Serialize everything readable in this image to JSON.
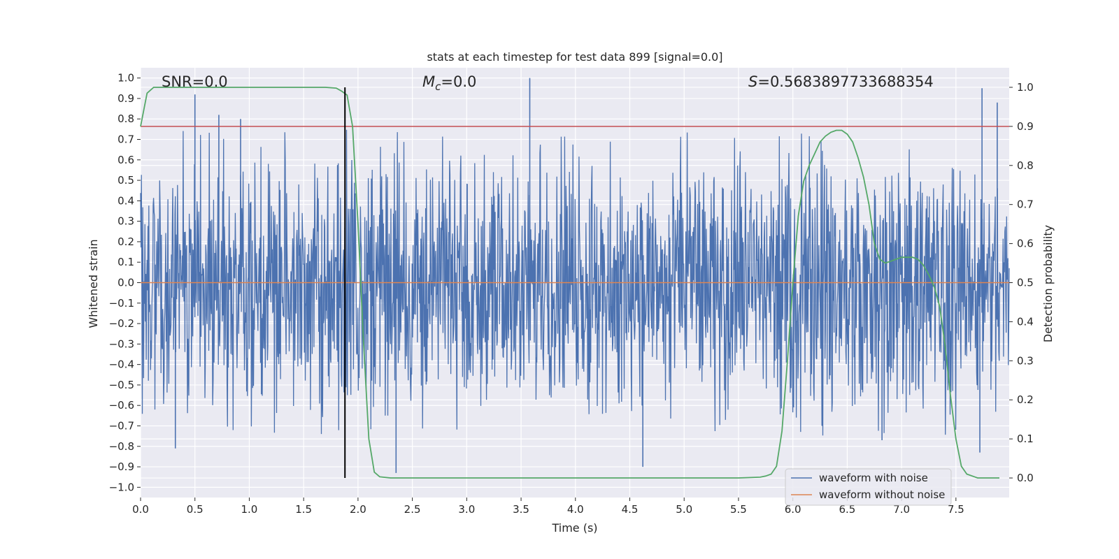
{
  "chart_data": {
    "type": "line",
    "title": "stats at each timestep for test data 899 [signal=0.0]",
    "xlabel": "Time (s)",
    "ylabel": "Whitened strain",
    "ylabel_right": "Detection probability",
    "xlim": [
      0.0,
      7.99
    ],
    "ylim": [
      -1.05,
      1.05
    ],
    "ylim_right": [
      -0.05,
      1.05
    ],
    "xticks": [
      0.0,
      0.5,
      1.0,
      1.5,
      2.0,
      2.5,
      3.0,
      3.5,
      4.0,
      4.5,
      5.0,
      5.5,
      6.0,
      6.5,
      7.0,
      7.5
    ],
    "xtick_labels": [
      "0.0",
      "0.5",
      "1.0",
      "1.5",
      "2.0",
      "2.5",
      "3.0",
      "3.5",
      "4.0",
      "4.5",
      "5.0",
      "5.5",
      "6.0",
      "6.5",
      "7.0",
      "7.5"
    ],
    "yticks": [
      1.0,
      0.9,
      0.8,
      0.7,
      0.6,
      0.5,
      0.4,
      0.3,
      0.2,
      0.1,
      0.0,
      -0.1,
      -0.2,
      -0.3,
      -0.4,
      -0.5,
      -0.6,
      -0.7,
      -0.8,
      -0.9,
      -1.0
    ],
    "ytick_labels": [
      "1.0",
      "0.9",
      "0.8",
      "0.7",
      "0.6",
      "0.5",
      "0.4",
      "0.3",
      "0.2",
      "0.1",
      "0.0",
      "−0.1",
      "−0.2",
      "−0.3",
      "−0.4",
      "−0.5",
      "−0.6",
      "−0.7",
      "−0.8",
      "−0.9",
      "−1.0"
    ],
    "yticks_right": [
      1.0,
      0.9,
      0.8,
      0.7,
      0.6,
      0.5,
      0.4,
      0.3,
      0.2,
      0.1,
      0.0
    ],
    "ytick_labels_right": [
      "1.0",
      "0.9",
      "0.8",
      "0.7",
      "0.6",
      "0.5",
      "0.4",
      "0.3",
      "0.2",
      "0.1",
      "0.0"
    ],
    "annotations": {
      "snr": "SNR=0.0",
      "mc_symbol": "M",
      "mc_subscript": "c",
      "mc_value": "=0.0",
      "s_symbol": "S",
      "s_value": "=0.5683897733688354"
    },
    "threshold": {
      "y_right": 0.9,
      "color": "#c44e52"
    },
    "marker_time": 1.88,
    "legend": {
      "position": "lower right",
      "entries": [
        {
          "label": "waveform with noise",
          "color": "#4c72b0"
        },
        {
          "label": "waveform without noise",
          "color": "#dd8452"
        }
      ]
    },
    "series": [
      {
        "name": "waveform with noise",
        "color": "#4c72b0",
        "axis": "left",
        "description": "dense whitened noise, roughly uniform, envelope about ±0.6 with spikes",
        "peaks": [
          {
            "t": 0.5,
            "v": 0.92
          },
          {
            "t": 0.72,
            "v": 0.82
          },
          {
            "t": 0.92,
            "v": 0.8
          },
          {
            "t": 3.58,
            "v": 1.0
          },
          {
            "t": 7.74,
            "v": 0.95
          },
          {
            "t": 7.88,
            "v": 0.88
          },
          {
            "t": 2.35,
            "v": -0.93
          },
          {
            "t": 4.62,
            "v": -0.9
          },
          {
            "t": 0.32,
            "v": -0.81
          },
          {
            "t": 7.72,
            "v": -0.83
          },
          {
            "t": 6.82,
            "v": -0.77
          }
        ]
      },
      {
        "name": "waveform without noise",
        "color": "#dd8452",
        "axis": "left",
        "x": [
          0.0,
          7.99
        ],
        "y": [
          0.0,
          0.0
        ]
      },
      {
        "name": "detection probability",
        "color": "#55a868",
        "axis": "right",
        "x": [
          0.0,
          0.06,
          0.12,
          0.5,
          1.0,
          1.5,
          1.7,
          1.8,
          1.85,
          1.9,
          1.95,
          2.0,
          2.05,
          2.1,
          2.15,
          2.2,
          2.3,
          2.5,
          3.0,
          4.0,
          5.0,
          5.5,
          5.7,
          5.75,
          5.8,
          5.85,
          5.9,
          5.95,
          6.0,
          6.05,
          6.1,
          6.15,
          6.2,
          6.25,
          6.3,
          6.35,
          6.4,
          6.45,
          6.5,
          6.55,
          6.6,
          6.65,
          6.7,
          6.75,
          6.8,
          6.85,
          6.9,
          6.95,
          7.0,
          7.05,
          7.1,
          7.15,
          7.2,
          7.25,
          7.3,
          7.35,
          7.4,
          7.45,
          7.5,
          7.55,
          7.6,
          7.7,
          7.9
        ],
        "y": [
          0.9,
          0.985,
          1.0,
          1.0,
          1.0,
          1.0,
          1.0,
          0.998,
          0.99,
          0.98,
          0.9,
          0.65,
          0.35,
          0.1,
          0.015,
          0.003,
          0.0,
          0.0,
          0.0,
          0.0,
          0.0,
          0.0,
          0.002,
          0.005,
          0.01,
          0.03,
          0.12,
          0.3,
          0.5,
          0.67,
          0.76,
          0.8,
          0.83,
          0.86,
          0.875,
          0.885,
          0.89,
          0.89,
          0.88,
          0.86,
          0.82,
          0.77,
          0.7,
          0.6,
          0.56,
          0.55,
          0.555,
          0.56,
          0.565,
          0.565,
          0.565,
          0.56,
          0.545,
          0.52,
          0.49,
          0.44,
          0.34,
          0.21,
          0.1,
          0.03,
          0.01,
          0.0,
          0.0
        ]
      }
    ]
  }
}
